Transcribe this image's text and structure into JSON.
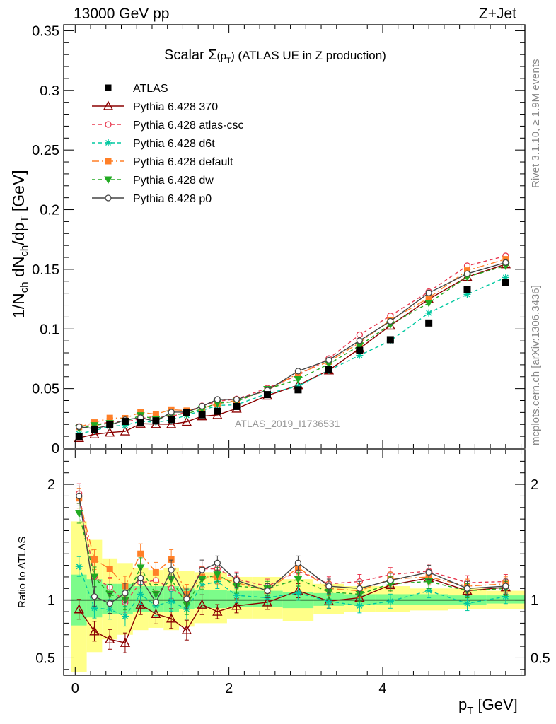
{
  "header": {
    "left": "13000 GeV pp",
    "right": "Z+Jet"
  },
  "side_labels": {
    "rivet": "Rivet 3.1.10, ≥ 1.9M events",
    "mcplots": "mcplots.cern.ch [arXiv:1306.3436]"
  },
  "chart_data": {
    "type": "line",
    "title_main": "Scalar Σ",
    "title_sub": "(p",
    "title_subT": "T",
    "title_close": ")",
    "title_tail": " (ATLAS UE in Z production)",
    "watermark": "ATLAS_2019_I1736531",
    "xlabel": "p",
    "xlabel_sub": "T",
    "xlabel_unit": " [GeV]",
    "ylabel": "1/N",
    "ylabel_ch1": "ch",
    "ylabel_mid": " dN",
    "ylabel_ch2": "ch",
    "ylabel_dp": "/dp",
    "ylabel_T": "T",
    "ylabel_unit": " [GeV]",
    "ratio_ylabel": "Ratio to ATLAS",
    "xlim": [
      -0.15,
      5.85
    ],
    "ylim": [
      0,
      0.355
    ],
    "ratio_ylim": [
      0.35,
      2.3
    ],
    "xticks": [
      {
        "v": 0,
        "label": "0"
      },
      {
        "v": 2,
        "label": "2"
      },
      {
        "v": 4,
        "label": "4"
      }
    ],
    "yticks": [
      {
        "v": 0,
        "label": "0"
      },
      {
        "v": 0.05,
        "label": "0.05"
      },
      {
        "v": 0.1,
        "label": "0.1"
      },
      {
        "v": 0.15,
        "label": "0.15"
      },
      {
        "v": 0.2,
        "label": "0.2"
      },
      {
        "v": 0.25,
        "label": "0.25"
      },
      {
        "v": 0.3,
        "label": "0.3"
      },
      {
        "v": 0.35,
        "label": "0.35"
      }
    ],
    "ratio_yticks": [
      {
        "v": 0.5,
        "label": "0.5"
      },
      {
        "v": 1,
        "label": "1"
      },
      {
        "v": 2,
        "label": "2"
      }
    ],
    "x": [
      0.05,
      0.25,
      0.45,
      0.65,
      0.85,
      1.05,
      1.25,
      1.45,
      1.65,
      1.85,
      2.1,
      2.5,
      2.9,
      3.3,
      3.7,
      4.1,
      4.6,
      5.1,
      5.6
    ],
    "data": {
      "name": "ATLAS",
      "color": "#000000",
      "values": [
        0.0095,
        0.016,
        0.02,
        0.0225,
        0.0215,
        0.023,
        0.024,
        0.03,
        0.028,
        0.031,
        0.035,
        0.045,
        0.049,
        0.066,
        0.082,
        0.091,
        0.105,
        0.133,
        0.139
      ],
      "band_yellow": [
        [
          0.38,
          1.68
        ],
        [
          0.55,
          1.52
        ],
        [
          0.66,
          1.36
        ],
        [
          0.7,
          1.32
        ],
        [
          0.74,
          1.28
        ],
        [
          0.76,
          1.26
        ],
        [
          0.74,
          1.28
        ],
        [
          0.77,
          1.25
        ],
        [
          0.8,
          1.24
        ],
        [
          0.8,
          1.24
        ],
        [
          0.84,
          1.2
        ],
        [
          0.84,
          1.2
        ],
        [
          0.82,
          1.18
        ],
        [
          0.88,
          1.14
        ],
        [
          0.9,
          1.12
        ],
        [
          0.9,
          1.12
        ],
        [
          0.91,
          1.1
        ],
        [
          0.92,
          1.1
        ],
        [
          0.92,
          1.08
        ]
      ],
      "band_green": [
        [
          0.78,
          1.22
        ],
        [
          0.85,
          1.18
        ],
        [
          0.88,
          1.14
        ],
        [
          0.88,
          1.14
        ],
        [
          0.9,
          1.12
        ],
        [
          0.9,
          1.12
        ],
        [
          0.9,
          1.12
        ],
        [
          0.92,
          1.1
        ],
        [
          0.93,
          1.09
        ],
        [
          0.93,
          1.09
        ],
        [
          0.94,
          1.08
        ],
        [
          0.94,
          1.08
        ],
        [
          0.93,
          1.07
        ],
        [
          0.95,
          1.06
        ],
        [
          0.96,
          1.05
        ],
        [
          0.96,
          1.05
        ],
        [
          0.96,
          1.05
        ],
        [
          0.96,
          1.04
        ],
        [
          0.97,
          1.04
        ]
      ]
    },
    "series": [
      {
        "name": "Pythia 6.428 370",
        "color": "#8b0000",
        "dash": "",
        "marker": "triangle",
        "ratio": [
          0.92,
          0.73,
          0.66,
          0.63,
          0.96,
          0.88,
          0.84,
          0.74,
          0.96,
          0.9,
          0.95,
          0.98,
          1.08,
          0.99,
          1.02,
          1.13,
          1.19,
          1.08,
          1.11
        ]
      },
      {
        "name": "Pythia 6.428 atlas-csc",
        "color": "#e8384f",
        "dash": "5,4",
        "marker": "opencircle",
        "ratio": [
          1.92,
          1.2,
          1.11,
          0.98,
          1.15,
          1.17,
          1.1,
          1.02,
          1.27,
          1.27,
          1.18,
          1.12,
          1.25,
          1.14,
          1.16,
          1.22,
          1.25,
          1.15,
          1.16
        ]
      },
      {
        "name": "Pythia 6.428 d6t",
        "color": "#00c8a0",
        "dash": "5,4",
        "marker": "star",
        "ratio": [
          1.29,
          0.93,
          0.92,
          0.86,
          1.05,
          0.95,
          0.99,
          0.92,
          1.13,
          1.16,
          1.04,
          1.02,
          1.06,
          0.99,
          0.95,
          0.99,
          1.08,
          0.97,
          1.03
        ]
      },
      {
        "name": "Pythia 6.428 default",
        "color": "#ff7f27",
        "dash": "10,4,2,4",
        "marker": "square",
        "ratio": [
          1.88,
          1.35,
          1.27,
          1.12,
          1.4,
          1.24,
          1.35,
          1.05,
          1.2,
          1.2,
          1.15,
          1.08,
          1.28,
          1.1,
          1.08,
          1.18,
          1.2,
          1.12,
          1.14
        ]
      },
      {
        "name": "Pythia 6.428 dw",
        "color": "#22aa22",
        "dash": "5,4",
        "marker": "downtriangle",
        "ratio": [
          1.75,
          1.2,
          1.05,
          1.0,
          1.28,
          1.05,
          1.18,
          0.96,
          1.18,
          1.22,
          1.12,
          1.1,
          1.18,
          1.07,
          1.05,
          1.14,
          1.16,
          1.08,
          1.1
        ]
      },
      {
        "name": "Pythia 6.428 p0",
        "color": "#444444",
        "dash": "",
        "marker": "opencircle",
        "ratio": [
          1.9,
          1.03,
          0.97,
          1.06,
          1.19,
          0.98,
          1.26,
          1.01,
          1.26,
          1.32,
          1.17,
          1.08,
          1.32,
          1.12,
          1.1,
          1.17,
          1.24,
          1.1,
          1.12
        ]
      }
    ],
    "legend_position": "top-left"
  }
}
